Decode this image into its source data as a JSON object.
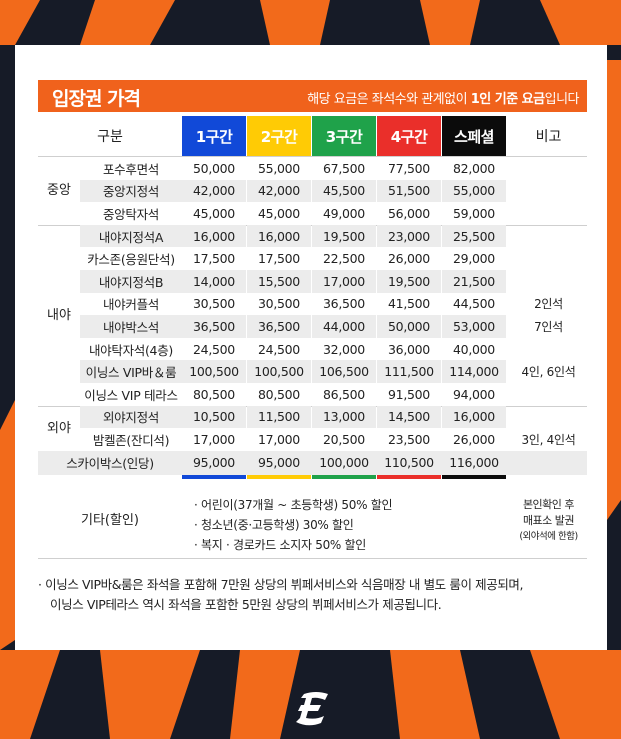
{
  "header": {
    "title": "입장권 가격",
    "note_prefix": "해당 요금은 좌석수와 관계없이 ",
    "note_bold": "1인 기준 요금",
    "note_suffix": "입니다"
  },
  "columns": {
    "category": "구분",
    "zones": [
      "1구간",
      "2구간",
      "3구간",
      "4구간",
      "스페셜"
    ],
    "remarks": "비고"
  },
  "colors": {
    "accent": "#f0621c",
    "zone1": "#1149d8",
    "zone2": "#ffcb05",
    "zone3": "#1fa24a",
    "zone4": "#ea2f2a",
    "zone5": "#0b0b0b"
  },
  "groups": {
    "center": "중앙",
    "infield": "내야",
    "outfield": "외야"
  },
  "rows": [
    {
      "name": "포수후면석",
      "v": [
        "50,000",
        "55,000",
        "67,500",
        "77,500",
        "82,000"
      ],
      "note": ""
    },
    {
      "name": "중앙지정석",
      "v": [
        "42,000",
        "42,000",
        "45,500",
        "51,500",
        "55,000"
      ],
      "note": ""
    },
    {
      "name": "중앙탁자석",
      "v": [
        "45,000",
        "45,000",
        "49,000",
        "56,000",
        "59,000"
      ],
      "note": ""
    },
    {
      "name": "내야지정석A",
      "v": [
        "16,000",
        "16,000",
        "19,500",
        "23,000",
        "25,500"
      ],
      "note": ""
    },
    {
      "name": "카스존(응원단석)",
      "v": [
        "17,500",
        "17,500",
        "22,500",
        "26,000",
        "29,000"
      ],
      "note": ""
    },
    {
      "name": "내야지정석B",
      "v": [
        "14,000",
        "15,500",
        "17,000",
        "19,500",
        "21,500"
      ],
      "note": ""
    },
    {
      "name": "내야커플석",
      "v": [
        "30,500",
        "30,500",
        "36,500",
        "41,500",
        "44,500"
      ],
      "note": "2인석"
    },
    {
      "name": "내야박스석",
      "v": [
        "36,500",
        "36,500",
        "44,000",
        "50,000",
        "53,000"
      ],
      "note": "7인석"
    },
    {
      "name": "내야탁자석(4층)",
      "v": [
        "24,500",
        "24,500",
        "32,000",
        "36,000",
        "40,000"
      ],
      "note": ""
    },
    {
      "name": "이닝스 VIP바＆룸",
      "v": [
        "100,500",
        "100,500",
        "106,500",
        "111,500",
        "114,000"
      ],
      "note": "4인, 6인석"
    },
    {
      "name": "이닝스 VIP 테라스",
      "v": [
        "80,500",
        "80,500",
        "86,500",
        "91,500",
        "94,000"
      ],
      "note": ""
    },
    {
      "name": "외야지정석",
      "v": [
        "10,500",
        "11,500",
        "13,000",
        "14,500",
        "16,000"
      ],
      "note": ""
    },
    {
      "name": "밤켈존(잔디석)",
      "v": [
        "17,000",
        "17,000",
        "20,500",
        "23,500",
        "26,000"
      ],
      "note": "3인, 4인석"
    }
  ],
  "skybox": {
    "name": "스카이박스(인당)",
    "v": [
      "95,000",
      "95,000",
      "100,000",
      "110,500",
      "116,000"
    ]
  },
  "etc": {
    "label": "기타(할인)",
    "items": [
      "· 어린이(37개월 ~ 초등학생) 50% 할인",
      "· 청소년(중·고등학생) 30% 할인",
      "· 복지 · 경로카드 소지자 50% 할인"
    ],
    "note_line1": "본인확인 후",
    "note_line2": "매표소 발권",
    "note_line3": "(외야석에 한함)"
  },
  "footnote": {
    "line1": "· 이닝스 VIP바&룸은 좌석을 포함해 7만원 상당의 뷔페서비스와 식음매장 내 별도 룸이 제공되며,",
    "line2": "  이닝스 VIP테라스 역시 좌석을 포함한 5만원 상당의 뷔페서비스가 제공됩니다."
  },
  "logo": {
    "icon": "team-logo-e-icon",
    "letter": "E"
  }
}
